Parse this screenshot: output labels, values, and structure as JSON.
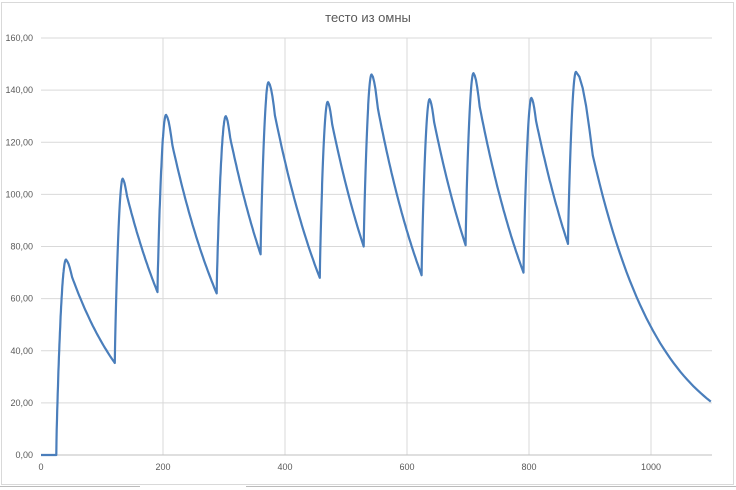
{
  "chart_data": {
    "type": "line",
    "title": "тесто из омны",
    "xlabel": "",
    "ylabel": "",
    "xlim": [
      0,
      1100
    ],
    "ylim": [
      0,
      160
    ],
    "xticks": [
      0,
      200,
      400,
      600,
      800,
      1000
    ],
    "xtick_labels": [
      "0",
      "200",
      "400",
      "600",
      "800",
      "1000"
    ],
    "yticks": [
      0,
      20,
      40,
      60,
      80,
      100,
      120,
      140,
      160
    ],
    "ytick_labels": [
      "0,00",
      "20,00",
      "40,00",
      "60,00",
      "80,00",
      "100,00",
      "120,00",
      "140,00",
      "160,00"
    ],
    "grid": true,
    "legend": "none",
    "line_color": "#4a7ebb",
    "series": [
      {
        "key_points": [
          [
            0,
            0
          ],
          [
            25,
            0
          ],
          [
            41,
            75
          ],
          [
            121,
            35.3
          ],
          [
            134,
            106
          ],
          [
            191,
            62.5
          ],
          [
            205,
            130.5
          ],
          [
            288,
            62
          ],
          [
            303,
            130
          ],
          [
            360,
            77
          ],
          [
            373,
            143
          ],
          [
            457,
            68
          ],
          [
            470,
            135.5
          ],
          [
            529,
            80
          ],
          [
            542,
            146
          ],
          [
            624,
            69
          ],
          [
            637,
            136.5
          ],
          [
            696,
            80.5
          ],
          [
            709,
            146.5
          ],
          [
            791,
            70
          ],
          [
            804,
            137
          ],
          [
            864,
            81
          ],
          [
            877,
            147
          ],
          [
            1098,
            20.5
          ]
        ]
      }
    ]
  }
}
